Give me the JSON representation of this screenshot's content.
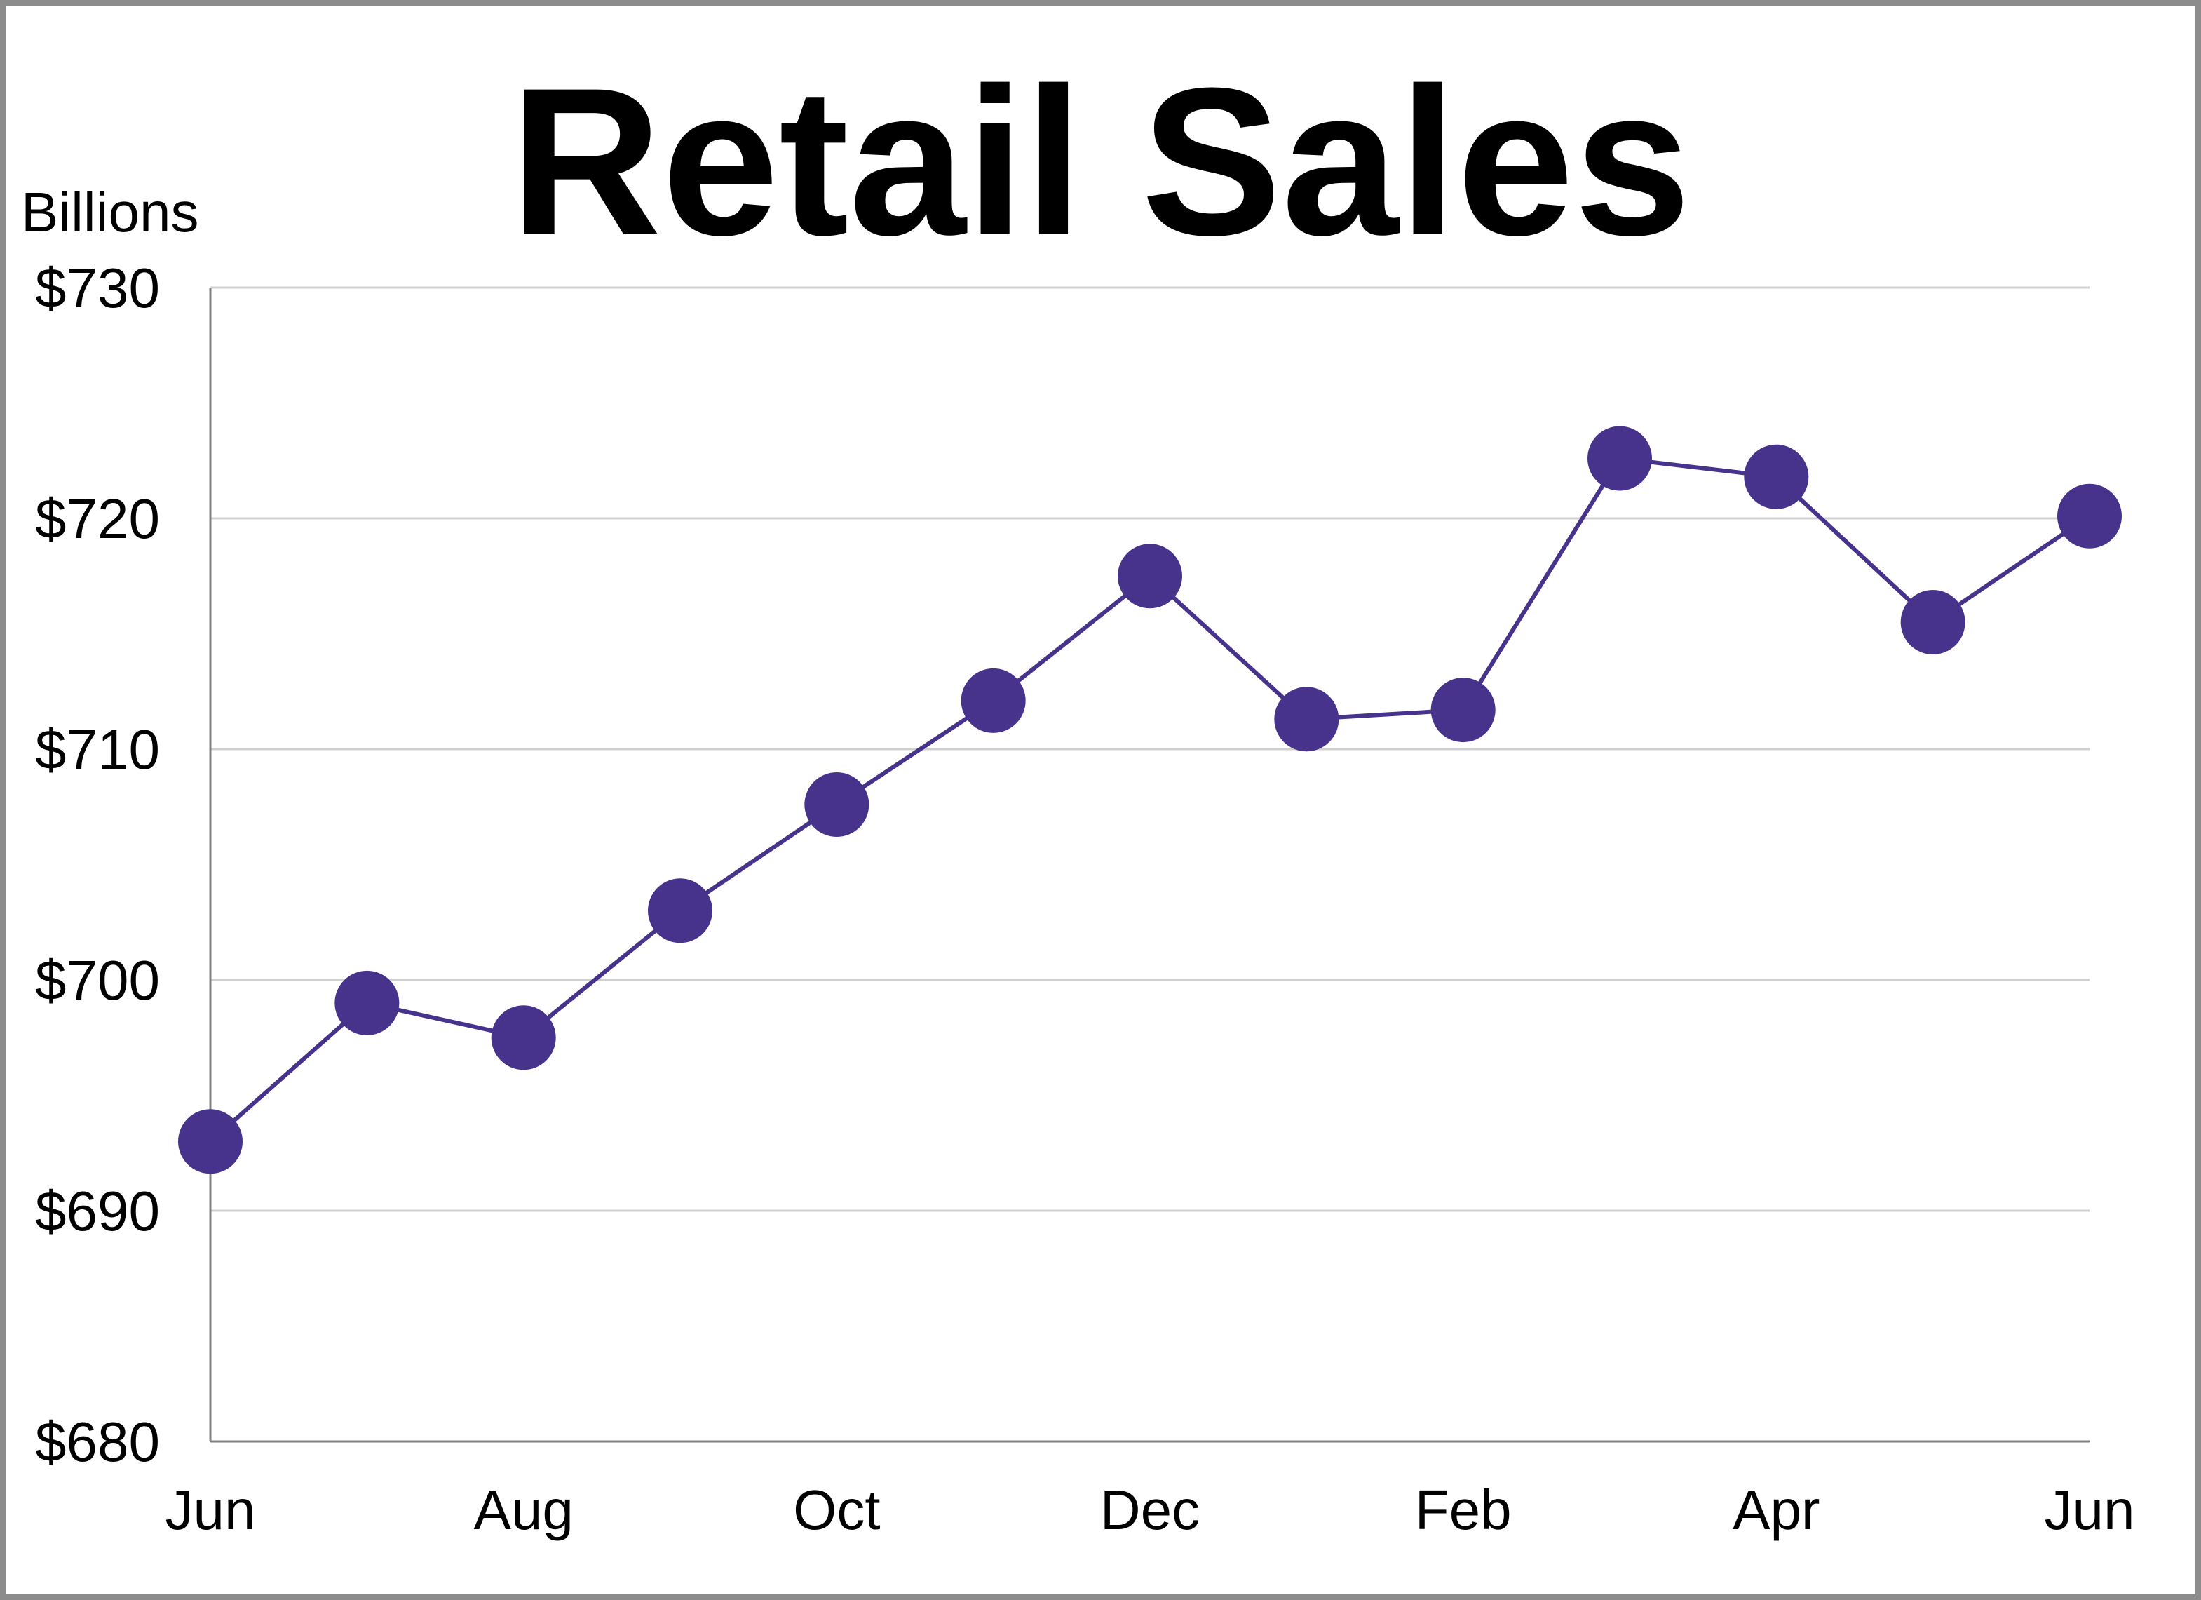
{
  "chart_data": {
    "type": "line",
    "title": "Retail Sales",
    "ylabel": "Billions",
    "xlabel": "",
    "ylim": [
      680,
      730
    ],
    "y_ticks": [
      "$680",
      "$690",
      "$700",
      "$710",
      "$720",
      "$730"
    ],
    "y_tick_values": [
      680,
      690,
      700,
      710,
      720,
      730
    ],
    "x_tick_labels": [
      "Jun",
      "Aug",
      "Oct",
      "Dec",
      "Feb",
      "Apr",
      "Jun"
    ],
    "x_tick_index": [
      0,
      2,
      4,
      6,
      8,
      10,
      12
    ],
    "grid": true,
    "legend": "none",
    "series": [
      {
        "color": "#47338b",
        "values": [
          693.0,
          699.0,
          697.5,
          703.0,
          707.6,
          712.1,
          717.5,
          711.3,
          711.7,
          722.6,
          721.8,
          715.5,
          720.1
        ]
      }
    ]
  }
}
